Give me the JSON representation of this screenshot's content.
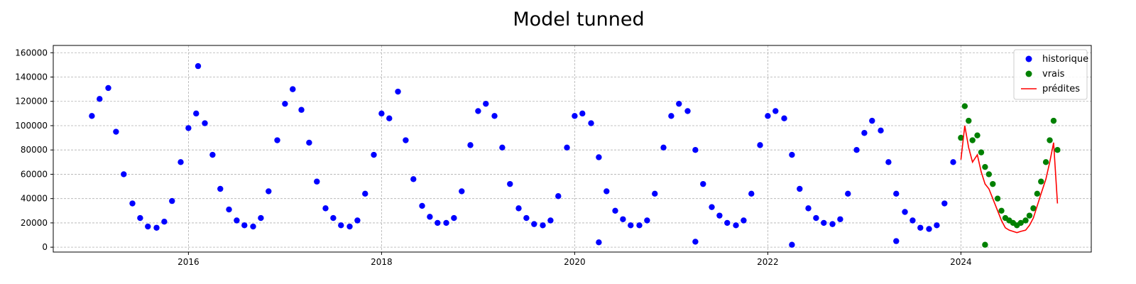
{
  "chart_data": {
    "type": "scatter",
    "title": "Model tunned",
    "xlabel": "",
    "ylabel": "",
    "xlim": [
      2014.6,
      2025.35
    ],
    "ylim": [
      -4000,
      166000
    ],
    "x_ticks": [
      2016,
      2018,
      2020,
      2022,
      2024
    ],
    "x_tick_labels": [
      "2016",
      "2018",
      "2020",
      "2022",
      "2024"
    ],
    "y_ticks": [
      0,
      20000,
      40000,
      60000,
      80000,
      100000,
      120000,
      140000,
      160000
    ],
    "y_tick_labels": [
      "0",
      "20000",
      "40000",
      "60000",
      "80000",
      "100000",
      "120000",
      "140000",
      "160000"
    ],
    "grid": true,
    "legend_position": "top-right",
    "colors": {
      "historique": "#0000ff",
      "vrais": "#008000",
      "predites": "#ff0000"
    },
    "series": [
      {
        "name": "historique",
        "kind": "scatter",
        "x": [
          2015.0,
          2015.08,
          2015.17,
          2015.25,
          2015.33,
          2015.42,
          2015.5,
          2015.58,
          2015.67,
          2015.75,
          2015.83,
          2015.92,
          2016.0,
          2016.08,
          2016.17,
          2016.25,
          2016.33,
          2016.42,
          2016.5,
          2016.58,
          2016.67,
          2016.75,
          2016.83,
          2016.92,
          2017.0,
          2017.08,
          2017.17,
          2017.25,
          2017.33,
          2017.42,
          2017.5,
          2017.58,
          2017.67,
          2017.75,
          2017.83,
          2017.92,
          2018.0,
          2018.08,
          2018.17,
          2018.25,
          2018.33,
          2018.42,
          2018.5,
          2018.58,
          2018.67,
          2018.75,
          2018.83,
          2018.92,
          2019.0,
          2019.08,
          2019.17,
          2019.25,
          2019.33,
          2019.42,
          2019.5,
          2019.58,
          2019.67,
          2019.75,
          2019.83,
          2019.92,
          2020.0,
          2020.08,
          2020.17,
          2020.25,
          2020.33,
          2020.42,
          2020.5,
          2020.58,
          2020.67,
          2020.75,
          2020.83,
          2020.92,
          2021.0,
          2021.08,
          2021.17,
          2021.25,
          2021.33,
          2021.42,
          2021.5,
          2021.58,
          2021.67,
          2021.75,
          2021.83,
          2021.92,
          2022.0,
          2022.08,
          2022.17,
          2022.25,
          2022.33,
          2022.42,
          2022.5,
          2022.58,
          2022.67,
          2022.75,
          2022.83,
          2022.92,
          2023.0,
          2023.08,
          2023.17,
          2023.25,
          2023.33,
          2023.42,
          2023.5,
          2023.58,
          2023.67,
          2023.75,
          2023.83,
          2023.92,
          2016.1,
          2020.25,
          2021.25,
          2022.25,
          2023.33
        ],
        "y": [
          108000,
          122000,
          131000,
          95000,
          60000,
          36000,
          24000,
          17000,
          16000,
          21000,
          38000,
          70000,
          98000,
          110000,
          102000,
          76000,
          48000,
          31000,
          22000,
          18000,
          17000,
          24000,
          46000,
          88000,
          118000,
          130000,
          113000,
          86000,
          54000,
          32000,
          24000,
          18000,
          17000,
          22000,
          44000,
          76000,
          110000,
          106000,
          128000,
          88000,
          56000,
          34000,
          25000,
          20000,
          20000,
          24000,
          46000,
          84000,
          112000,
          118000,
          108000,
          82000,
          52000,
          32000,
          24000,
          19000,
          18000,
          22000,
          42000,
          82000,
          108000,
          110000,
          102000,
          74000,
          46000,
          30000,
          23000,
          18000,
          18000,
          22000,
          44000,
          82000,
          108000,
          118000,
          112000,
          80000,
          52000,
          33000,
          26000,
          20000,
          18000,
          22000,
          44000,
          84000,
          108000,
          112000,
          106000,
          76000,
          48000,
          32000,
          24000,
          20000,
          19000,
          23000,
          44000,
          80000,
          94000,
          104000,
          96000,
          70000,
          44000,
          29000,
          22000,
          16000,
          15000,
          18000,
          36000,
          70000,
          149000,
          4000,
          4500,
          2000,
          5000
        ]
      },
      {
        "name": "vrais",
        "kind": "scatter",
        "x": [
          2024.0,
          2024.04,
          2024.08,
          2024.12,
          2024.17,
          2024.21,
          2024.25,
          2024.29,
          2024.33,
          2024.38,
          2024.42,
          2024.46,
          2024.5,
          2024.54,
          2024.58,
          2024.62,
          2024.67,
          2024.71,
          2024.75,
          2024.79,
          2024.83,
          2024.88,
          2024.92,
          2024.96,
          2025.0,
          2024.25
        ],
        "y": [
          90000,
          116000,
          104000,
          88000,
          92000,
          78000,
          66000,
          60000,
          52000,
          40000,
          30000,
          24000,
          22000,
          20000,
          18000,
          20000,
          22000,
          26000,
          32000,
          44000,
          54000,
          70000,
          88000,
          104000,
          80000,
          2000
        ]
      },
      {
        "name": "prédites",
        "kind": "line",
        "x": [
          2024.0,
          2024.04,
          2024.08,
          2024.12,
          2024.17,
          2024.21,
          2024.25,
          2024.29,
          2024.33,
          2024.38,
          2024.42,
          2024.46,
          2024.5,
          2024.54,
          2024.58,
          2024.62,
          2024.67,
          2024.71,
          2024.75,
          2024.79,
          2024.83,
          2024.88,
          2024.92,
          2024.96,
          2025.0
        ],
        "y": [
          72000,
          100000,
          82000,
          70000,
          76000,
          62000,
          52000,
          48000,
          40000,
          30000,
          22000,
          16000,
          14000,
          13000,
          12000,
          13000,
          14000,
          18000,
          24000,
          34000,
          44000,
          56000,
          70000,
          86000,
          36000
        ]
      }
    ]
  }
}
